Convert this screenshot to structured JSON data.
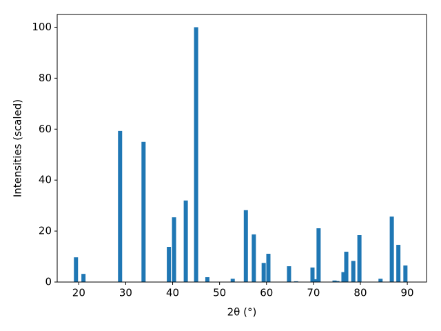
{
  "chart_data": {
    "type": "bar",
    "xlabel": "2θ (°)",
    "ylabel": "Intensities (scaled)",
    "x": [
      19.4,
      21.0,
      28.8,
      33.8,
      39.2,
      40.3,
      42.8,
      45.0,
      47.4,
      52.8,
      55.6,
      57.3,
      59.4,
      60.4,
      64.8,
      66.3,
      69.8,
      70.3,
      71.1,
      74.5,
      75.1,
      76.4,
      77.0,
      78.5,
      79.8,
      84.3,
      86.7,
      88.1,
      89.6
    ],
    "values": [
      9.7,
      3.2,
      59.3,
      55,
      13.8,
      25.4,
      32,
      100,
      1.9,
      1.3,
      28.2,
      18.7,
      7.5,
      11.1,
      6.2,
      0.3,
      5.7,
      1.1,
      21.1,
      0.6,
      0.4,
      3.9,
      11.9,
      8.3,
      18.4,
      1.3,
      25.7,
      14.6,
      6.5
    ],
    "color": "#1f77b4",
    "xlim": [
      15.4,
      94.1
    ],
    "xticks": [
      20,
      30,
      40,
      50,
      60,
      70,
      80,
      90
    ],
    "ylim": [
      0,
      105
    ],
    "yticks": [
      0,
      20,
      40,
      60,
      80,
      100
    ],
    "grid": false
  }
}
